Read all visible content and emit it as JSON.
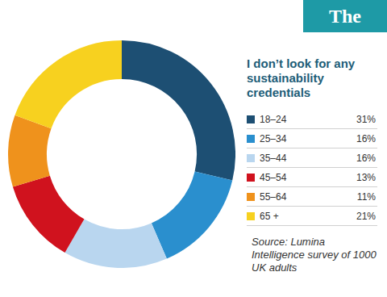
{
  "chart_data": {
    "type": "doughnut",
    "title": "I don’t look for any sustainability credentials",
    "categories": [
      "18–24",
      "25–34",
      "35–44",
      "45–54",
      "55–64",
      "65 +"
    ],
    "values": [
      31,
      16,
      16,
      13,
      11,
      21
    ],
    "value_labels": [
      "31%",
      "16%",
      "16%",
      "13%",
      "11%",
      "21%"
    ],
    "colors": [
      "#1d4f73",
      "#2a8fce",
      "#b9d6ef",
      "#d0121e",
      "#ef921c",
      "#f7d11f"
    ],
    "legend": "right",
    "source": "Source: Lumina Intelligence survey of 1000 UK adults",
    "brand": "The Grocer"
  }
}
